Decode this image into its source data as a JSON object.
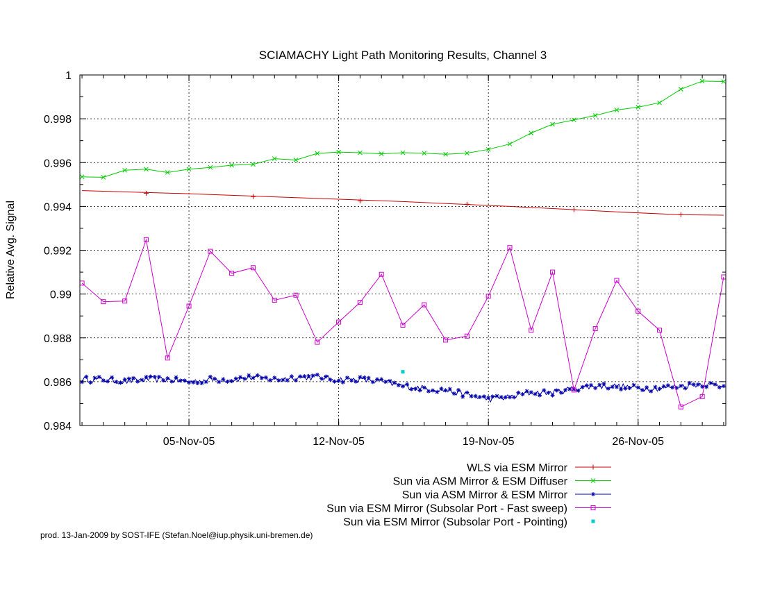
{
  "footer": "prod. 13-Jan-2009 by SOST-IFE (Stefan.Noel@iup.physik.uni-bremen.de)",
  "chart_data": {
    "type": "line",
    "title": "SCIAMACHY Light Path Monitoring Results, Channel 3",
    "xlabel": "",
    "ylabel": "Relative Avg. Signal",
    "xlim": [
      "2005-10-31",
      "2005-11-30"
    ],
    "ylim": [
      0.984,
      1.0
    ],
    "y_ticks": [
      0.984,
      0.986,
      0.988,
      0.99,
      0.992,
      0.994,
      0.996,
      0.998,
      1
    ],
    "y_tick_labels": [
      "0.984",
      "0.986",
      "0.988",
      "0.99",
      "0.992",
      "0.994",
      "0.996",
      "0.998",
      "1"
    ],
    "x_ticks": [
      "2005-11-05",
      "2005-11-12",
      "2005-11-19",
      "2005-11-26"
    ],
    "x_tick_labels": [
      "05-Nov-05",
      "12-Nov-05",
      "19-Nov-05",
      "26-Nov-05"
    ],
    "grid": true,
    "legend_position": "bottom-right",
    "series": [
      {
        "name": "WLS via ESM Mirror",
        "color": "#cc0000",
        "marker": "plus",
        "x": [
          "2005-11-03",
          "2005-11-08",
          "2005-11-13",
          "2005-11-18",
          "2005-11-23",
          "2005-11-28"
        ],
        "y": [
          0.9946,
          0.99445,
          0.99425,
          0.9941,
          0.99385,
          0.99362
        ],
        "line_x": [
          "2005-10-31",
          "2005-11-05",
          "2005-11-10",
          "2005-11-15",
          "2005-11-20",
          "2005-11-25",
          "2005-11-28",
          "2005-11-30"
        ],
        "line_y": [
          0.99472,
          0.99458,
          0.9944,
          0.99422,
          0.994,
          0.99375,
          0.99362,
          0.9936
        ]
      },
      {
        "name": "Sun via ASM Mirror & ESM Diffuser",
        "color": "#00cc00",
        "marker": "x",
        "x": [
          "2005-10-31",
          "2005-11-01",
          "2005-11-02",
          "2005-11-03",
          "2005-11-04",
          "2005-11-05",
          "2005-11-06",
          "2005-11-07",
          "2005-11-08",
          "2005-11-09",
          "2005-11-10",
          "2005-11-11",
          "2005-11-12",
          "2005-11-13",
          "2005-11-14",
          "2005-11-15",
          "2005-11-16",
          "2005-11-17",
          "2005-11-18",
          "2005-11-19",
          "2005-11-20",
          "2005-11-21",
          "2005-11-22",
          "2005-11-23",
          "2005-11-24",
          "2005-11-25",
          "2005-11-26",
          "2005-11-27",
          "2005-11-28",
          "2005-11-29",
          "2005-11-30"
        ],
        "y": [
          0.99535,
          0.99533,
          0.99565,
          0.9957,
          0.99555,
          0.9957,
          0.99578,
          0.99588,
          0.99592,
          0.99618,
          0.99612,
          0.99642,
          0.99648,
          0.99645,
          0.9964,
          0.99645,
          0.99643,
          0.99638,
          0.99643,
          0.9966,
          0.99685,
          0.99735,
          0.99775,
          0.99795,
          0.99815,
          0.9984,
          0.99853,
          0.99873,
          0.99935,
          0.99972,
          0.9997
        ]
      },
      {
        "name": "Sun via ASM Mirror & ESM Mirror",
        "color": "#0000aa",
        "marker": "star",
        "x": [
          "2005-10-31",
          "2005-11-01",
          "2005-11-02",
          "2005-11-03",
          "2005-11-04",
          "2005-11-05",
          "2005-11-06",
          "2005-11-07",
          "2005-11-08",
          "2005-11-09",
          "2005-11-10",
          "2005-11-11",
          "2005-11-12",
          "2005-11-13",
          "2005-11-14",
          "2005-11-15",
          "2005-11-16",
          "2005-11-17",
          "2005-11-18",
          "2005-11-19",
          "2005-11-20",
          "2005-11-21",
          "2005-11-22",
          "2005-11-23",
          "2005-11-24",
          "2005-11-25",
          "2005-11-26",
          "2005-11-27",
          "2005-11-28",
          "2005-11-29",
          "2005-11-30"
        ],
        "y": [
          0.9861,
          0.9861,
          0.986,
          0.9861,
          0.9861,
          0.986,
          0.9861,
          0.9861,
          0.9862,
          0.9861,
          0.9862,
          0.9862,
          0.9861,
          0.9861,
          0.986,
          0.9858,
          0.9857,
          0.9856,
          0.9854,
          0.9852,
          0.9853,
          0.9855,
          0.9855,
          0.9857,
          0.9858,
          0.9858,
          0.9857,
          0.9857,
          0.9858,
          0.9859,
          0.9858
        ]
      },
      {
        "name": "Sun via ESM Mirror (Subsolar Port - Fast sweep)",
        "color": "#cc00cc",
        "marker": "square",
        "x": [
          "2005-10-31",
          "2005-11-01",
          "2005-11-02",
          "2005-11-03",
          "2005-11-04",
          "2005-11-05",
          "2005-11-06",
          "2005-11-07",
          "2005-11-08",
          "2005-11-09",
          "2005-11-10",
          "2005-11-11",
          "2005-11-12",
          "2005-11-13",
          "2005-11-14",
          "2005-11-15",
          "2005-11-16",
          "2005-11-17",
          "2005-11-18",
          "2005-11-19",
          "2005-11-20",
          "2005-11-21",
          "2005-11-22",
          "2005-11-23",
          "2005-11-24",
          "2005-11-25",
          "2005-11-26",
          "2005-11-27",
          "2005-11-28",
          "2005-11-29",
          "2005-11-30"
        ],
        "y": [
          0.9905,
          0.98965,
          0.98968,
          0.99248,
          0.98708,
          0.98945,
          0.99195,
          0.99095,
          0.9912,
          0.98972,
          0.98995,
          0.9878,
          0.98872,
          0.98962,
          0.9909,
          0.98858,
          0.98951,
          0.9879,
          0.98808,
          0.9899,
          0.99212,
          0.98835,
          0.991,
          0.98562,
          0.98842,
          0.99062,
          0.98922,
          0.98835,
          0.98485,
          0.98532,
          0.99078
        ]
      },
      {
        "name": "Sun via ESM Mirror (Subsolar Port - Pointing)",
        "color": "#00cccc",
        "marker": "dot",
        "x": [
          "2005-11-15"
        ],
        "y": [
          0.98645
        ]
      }
    ]
  }
}
